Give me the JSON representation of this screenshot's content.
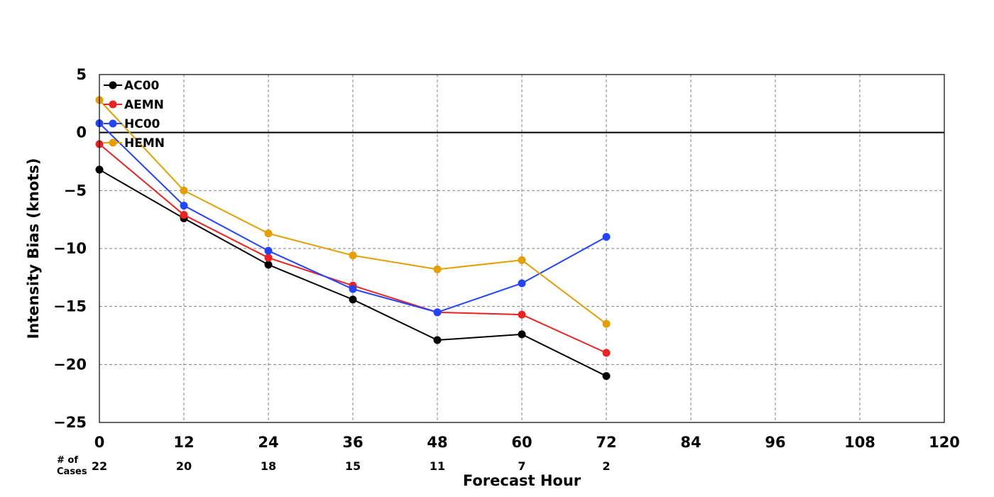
{
  "chart_data": {
    "type": "line",
    "xlabel": "Forecast Hour",
    "ylabel": "Intensity Bias (knots)",
    "xlim": [
      0,
      120
    ],
    "ylim": [
      -25,
      5
    ],
    "xticks": [
      "0",
      "12",
      "24",
      "36",
      "48",
      "60",
      "72",
      "84",
      "96",
      "108",
      "120"
    ],
    "yticks": [
      "5",
      "0",
      "−5",
      "−10",
      "−15",
      "−20",
      "−25"
    ],
    "grid": true,
    "legend_position": "top-left",
    "zero_line": true,
    "x": [
      0,
      12,
      24,
      36,
      48,
      60,
      72
    ],
    "series": [
      {
        "name": "AC00",
        "color": "#000000",
        "values": [
          -3.2,
          -7.4,
          -11.4,
          -14.4,
          -17.9,
          -17.4,
          -21.0
        ]
      },
      {
        "name": "AEMN",
        "color": "#ee2222",
        "values": [
          -1.0,
          -7.1,
          -10.8,
          -13.2,
          -15.5,
          -15.7,
          -19.0
        ]
      },
      {
        "name": "HC00",
        "color": "#2244ff",
        "values": [
          0.8,
          -6.3,
          -10.2,
          -13.5,
          -15.5,
          -13.0,
          -9.0
        ]
      },
      {
        "name": "HEMN",
        "color": "#e69f00",
        "values": [
          2.8,
          -5.0,
          -8.7,
          -10.6,
          -11.8,
          -11.0,
          -16.5
        ]
      }
    ],
    "cases_label": [
      "# of",
      "Cases"
    ],
    "cases": [
      "22",
      "20",
      "18",
      "15",
      "11",
      "7",
      "2"
    ]
  }
}
